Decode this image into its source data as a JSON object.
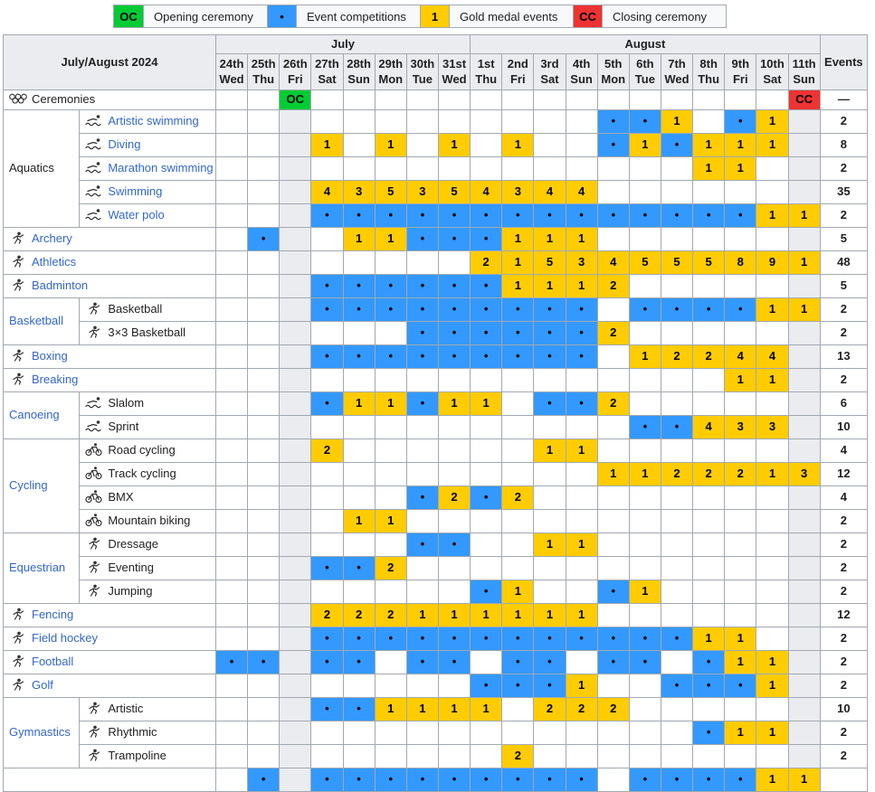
{
  "colors": {
    "event": "#3399ff",
    "gold": "#ffcc00",
    "open": "#00cc33",
    "close": "#ee3333",
    "shaded": "#eaecf0",
    "header_bg": "#eaecf0",
    "border": "#a2a9b1",
    "link": "#3366cc"
  },
  "legend": [
    {
      "swatch": "OC",
      "color": "#00cc33",
      "label": "Opening ceremony"
    },
    {
      "swatch": "•",
      "color": "#3399ff",
      "label": "Event competitions"
    },
    {
      "swatch": "1",
      "color": "#ffcc00",
      "label": "Gold medal events"
    },
    {
      "swatch": "CC",
      "color": "#ee3333",
      "label": "Closing ceremony"
    }
  ],
  "header": {
    "title": "July/August 2024",
    "months": [
      {
        "name": "July",
        "span": 8
      },
      {
        "name": "August",
        "span": 11
      }
    ],
    "days": [
      {
        "d": "24th",
        "w": "Wed"
      },
      {
        "d": "25th",
        "w": "Thu"
      },
      {
        "d": "26th",
        "w": "Fri"
      },
      {
        "d": "27th",
        "w": "Sat"
      },
      {
        "d": "28th",
        "w": "Sun"
      },
      {
        "d": "29th",
        "w": "Mon"
      },
      {
        "d": "30th",
        "w": "Tue"
      },
      {
        "d": "31st",
        "w": "Wed"
      },
      {
        "d": "1st",
        "w": "Thu"
      },
      {
        "d": "2nd",
        "w": "Fri"
      },
      {
        "d": "3rd",
        "w": "Sat"
      },
      {
        "d": "4th",
        "w": "Sun"
      },
      {
        "d": "5th",
        "w": "Mon"
      },
      {
        "d": "6th",
        "w": "Tue"
      },
      {
        "d": "7th",
        "w": "Wed"
      },
      {
        "d": "8th",
        "w": "Thu"
      },
      {
        "d": "9th",
        "w": "Fri"
      },
      {
        "d": "10th",
        "w": "Sat"
      },
      {
        "d": "11th",
        "w": "Sun"
      }
    ],
    "events_label": "Events"
  },
  "ceremonies": {
    "label": "Ceremonies",
    "icon": "olympic-rings",
    "link": false,
    "cells": [
      "",
      "",
      "OC",
      "",
      "",
      "",
      "",
      "",
      "",
      "",
      "",
      "",
      "",
      "",
      "",
      "",
      "",
      "",
      "CC"
    ],
    "events": "—"
  },
  "rows": [
    {
      "group": {
        "label": "Aquatics",
        "span": 5,
        "link": false
      },
      "indent": true,
      "label": "Artistic swimming",
      "link": true,
      "icon": "artistic-swimming",
      "cells": [
        "",
        "",
        "g",
        "",
        "",
        "",
        "",
        "",
        "",
        "",
        "",
        "",
        "b",
        "b",
        "1",
        "",
        "b",
        "1",
        "g"
      ],
      "events": "2"
    },
    {
      "indent": true,
      "label": "Diving",
      "link": true,
      "icon": "diving",
      "cells": [
        "",
        "",
        "g",
        "1",
        "",
        "1",
        "",
        "1",
        "",
        "1",
        "",
        "",
        "b",
        "1",
        "b",
        "1",
        "1",
        "1",
        "g"
      ],
      "events": "8"
    },
    {
      "indent": true,
      "label": "Marathon swimming",
      "link": true,
      "icon": "marathon-swimming",
      "cells": [
        "",
        "",
        "g",
        "",
        "",
        "",
        "",
        "",
        "",
        "",
        "",
        "",
        "",
        "",
        "",
        "1",
        "1",
        "",
        "g"
      ],
      "events": "2"
    },
    {
      "indent": true,
      "label": "Swimming",
      "link": true,
      "icon": "swimming",
      "cells": [
        "",
        "",
        "g",
        "4",
        "3",
        "5",
        "3",
        "5",
        "4",
        "3",
        "4",
        "4",
        "",
        "",
        "",
        "",
        "",
        "",
        "g"
      ],
      "events": "35"
    },
    {
      "indent": true,
      "label": "Water polo",
      "link": true,
      "icon": "water-polo",
      "cells": [
        "",
        "",
        "g",
        "b",
        "b",
        "b",
        "b",
        "b",
        "b",
        "b",
        "b",
        "b",
        "b",
        "b",
        "b",
        "b",
        "b",
        "1",
        "1"
      ],
      "events": "2"
    },
    {
      "indent": false,
      "label": "Archery",
      "link": true,
      "icon": "archery",
      "cells": [
        "",
        "b",
        "g",
        "",
        "1",
        "1",
        "b",
        "b",
        "b",
        "1",
        "1",
        "1",
        "",
        "",
        "",
        "",
        "",
        "",
        "g"
      ],
      "events": "5"
    },
    {
      "indent": false,
      "label": "Athletics",
      "link": true,
      "icon": "athletics",
      "cells": [
        "",
        "",
        "g",
        "",
        "",
        "",
        "",
        "",
        "2",
        "1",
        "5",
        "3",
        "4",
        "5",
        "5",
        "5",
        "8",
        "9",
        "1"
      ],
      "events": "48"
    },
    {
      "indent": false,
      "label": "Badminton",
      "link": true,
      "icon": "badminton",
      "cells": [
        "",
        "",
        "g",
        "b",
        "b",
        "b",
        "b",
        "b",
        "b",
        "1",
        "1",
        "1",
        "2",
        "",
        "",
        "",
        "",
        "",
        "g"
      ],
      "events": "5"
    },
    {
      "group": {
        "label": "Basketball",
        "span": 2,
        "link": true
      },
      "indent": true,
      "label": "Basketball",
      "link": false,
      "icon": "basketball",
      "cells": [
        "",
        "",
        "g",
        "b",
        "b",
        "b",
        "b",
        "b",
        "b",
        "b",
        "b",
        "b",
        "",
        "b",
        "b",
        "b",
        "b",
        "1",
        "1"
      ],
      "events": "2"
    },
    {
      "indent": true,
      "label": "3×3 Basketball",
      "link": false,
      "icon": "3x3-basketball",
      "cells": [
        "",
        "",
        "g",
        "",
        "",
        "",
        "b",
        "b",
        "b",
        "b",
        "b",
        "b",
        "2",
        "",
        "",
        "",
        "",
        "",
        "g"
      ],
      "events": "2"
    },
    {
      "indent": false,
      "label": "Boxing",
      "link": true,
      "icon": "boxing",
      "cells": [
        "",
        "",
        "g",
        "b",
        "b",
        "b",
        "b",
        "b",
        "b",
        "b",
        "b",
        "b",
        "",
        "1",
        "2",
        "2",
        "4",
        "4",
        "g"
      ],
      "events": "13"
    },
    {
      "indent": false,
      "label": "Breaking",
      "link": true,
      "icon": "breaking",
      "cells": [
        "",
        "",
        "g",
        "",
        "",
        "",
        "",
        "",
        "",
        "",
        "",
        "",
        "",
        "",
        "",
        "",
        "1",
        "1",
        "g"
      ],
      "events": "2"
    },
    {
      "group": {
        "label": "Canoeing",
        "span": 2,
        "link": true
      },
      "indent": true,
      "label": "Slalom",
      "link": false,
      "icon": "canoe-slalom",
      "cells": [
        "",
        "",
        "g",
        "b",
        "1",
        "1",
        "b",
        "1",
        "1",
        "",
        "b",
        "b",
        "2",
        "",
        "",
        "",
        "",
        "",
        "g"
      ],
      "events": "6"
    },
    {
      "indent": true,
      "label": "Sprint",
      "link": false,
      "icon": "canoe-sprint",
      "cells": [
        "",
        "",
        "g",
        "",
        "",
        "",
        "",
        "",
        "",
        "",
        "",
        "",
        "",
        "b",
        "b",
        "4",
        "3",
        "3",
        "g"
      ],
      "events": "10"
    },
    {
      "group": {
        "label": "Cycling",
        "span": 4,
        "link": true
      },
      "indent": true,
      "label": "Road cycling",
      "link": false,
      "icon": "road-cycling",
      "cells": [
        "",
        "",
        "g",
        "2",
        "",
        "",
        "",
        "",
        "",
        "",
        "1",
        "1",
        "",
        "",
        "",
        "",
        "",
        "",
        "g"
      ],
      "events": "4"
    },
    {
      "indent": true,
      "label": "Track cycling",
      "link": false,
      "icon": "track-cycling",
      "cells": [
        "",
        "",
        "g",
        "",
        "",
        "",
        "",
        "",
        "",
        "",
        "",
        "",
        "1",
        "1",
        "2",
        "2",
        "2",
        "1",
        "3"
      ],
      "events": "12"
    },
    {
      "indent": true,
      "label": "BMX",
      "link": false,
      "icon": "bmx",
      "cells": [
        "",
        "",
        "g",
        "",
        "",
        "",
        "b",
        "2",
        "b",
        "2",
        "",
        "",
        "",
        "",
        "",
        "",
        "",
        "",
        "g"
      ],
      "events": "4"
    },
    {
      "indent": true,
      "label": "Mountain biking",
      "link": false,
      "icon": "mountain-biking",
      "cells": [
        "",
        "",
        "g",
        "",
        "1",
        "1",
        "",
        "",
        "",
        "",
        "",
        "",
        "",
        "",
        "",
        "",
        "",
        "",
        "g"
      ],
      "events": "2"
    },
    {
      "group": {
        "label": "Equestrian",
        "span": 3,
        "link": true
      },
      "indent": true,
      "label": "Dressage",
      "link": false,
      "icon": "dressage",
      "cells": [
        "",
        "",
        "g",
        "",
        "",
        "",
        "b",
        "b",
        "",
        "",
        "1",
        "1",
        "",
        "",
        "",
        "",
        "",
        "",
        "g"
      ],
      "events": "2"
    },
    {
      "indent": true,
      "label": "Eventing",
      "link": false,
      "icon": "eventing",
      "cells": [
        "",
        "",
        "g",
        "b",
        "b",
        "2",
        "",
        "",
        "",
        "",
        "",
        "",
        "",
        "",
        "",
        "",
        "",
        "",
        "g"
      ],
      "events": "2"
    },
    {
      "indent": true,
      "label": "Jumping",
      "link": false,
      "icon": "jumping",
      "cells": [
        "",
        "",
        "g",
        "",
        "",
        "",
        "",
        "",
        "b",
        "1",
        "",
        "",
        "b",
        "1",
        "",
        "",
        "",
        "",
        "g"
      ],
      "events": "2"
    },
    {
      "indent": false,
      "label": "Fencing",
      "link": true,
      "icon": "fencing",
      "cells": [
        "",
        "",
        "g",
        "2",
        "2",
        "2",
        "1",
        "1",
        "1",
        "1",
        "1",
        "1",
        "",
        "",
        "",
        "",
        "",
        "",
        "g"
      ],
      "events": "12"
    },
    {
      "indent": false,
      "label": "Field hockey",
      "link": true,
      "icon": "field-hockey",
      "cells": [
        "",
        "",
        "g",
        "b",
        "b",
        "b",
        "b",
        "b",
        "b",
        "b",
        "b",
        "b",
        "b",
        "b",
        "b",
        "1",
        "1",
        "",
        "g"
      ],
      "events": "2"
    },
    {
      "indent": false,
      "label": "Football",
      "link": true,
      "icon": "football",
      "cells": [
        "b",
        "b",
        "g",
        "b",
        "b",
        "",
        "b",
        "b",
        "",
        "b",
        "b",
        "",
        "b",
        "b",
        "",
        "b",
        "1",
        "1",
        "g"
      ],
      "events": "2"
    },
    {
      "indent": false,
      "label": "Golf",
      "link": true,
      "icon": "golf",
      "cells": [
        "",
        "",
        "g",
        "",
        "",
        "",
        "",
        "",
        "b",
        "b",
        "b",
        "1",
        "",
        "",
        "b",
        "b",
        "b",
        "1",
        "g"
      ],
      "events": "2"
    },
    {
      "group": {
        "label": "Gymnastics",
        "span": 3,
        "link": true
      },
      "indent": true,
      "label": "Artistic",
      "link": false,
      "icon": "artistic-gymnastics",
      "cells": [
        "",
        "",
        "g",
        "b",
        "b",
        "1",
        "1",
        "1",
        "1",
        "",
        "2",
        "2",
        "2",
        "",
        "",
        "",
        "",
        "",
        "g"
      ],
      "events": "10"
    },
    {
      "indent": true,
      "label": "Rhythmic",
      "link": false,
      "icon": "rhythmic-gymnastics",
      "cells": [
        "",
        "",
        "g",
        "",
        "",
        "",
        "",
        "",
        "",
        "",
        "",
        "",
        "",
        "",
        "",
        "b",
        "1",
        "1",
        "g"
      ],
      "events": "2"
    },
    {
      "indent": true,
      "label": "Trampoline",
      "link": false,
      "icon": "trampoline",
      "cells": [
        "",
        "",
        "g",
        "",
        "",
        "",
        "",
        "",
        "",
        "2",
        "",
        "",
        "",
        "",
        "",
        "",
        "",
        "",
        "g"
      ],
      "events": "2"
    },
    {
      "indent": false,
      "label": "",
      "link": false,
      "icon": "",
      "cells": [
        "",
        "b",
        "g",
        "b",
        "b",
        "b",
        "b",
        "b",
        "b",
        "b",
        "b",
        "b",
        "",
        "b",
        "b",
        "b",
        "b",
        "1",
        "1"
      ],
      "events": ""
    }
  ]
}
